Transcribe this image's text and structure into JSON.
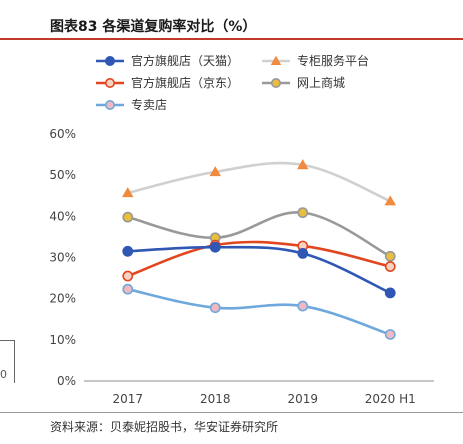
{
  "header": {
    "title": "图表83 各渠道复购率对比（%）"
  },
  "footer": {
    "source": "资料来源：贝泰妮招股书，华安证券研究所"
  },
  "left_fragment": {
    "text": "0"
  },
  "chart_data": {
    "type": "line",
    "title": "",
    "xlabel": "",
    "ylabel": "",
    "categories": [
      "2017",
      "2018",
      "2019",
      "2020 H1"
    ],
    "ylim": [
      0,
      60
    ],
    "yticks": [
      "0%",
      "10%",
      "20%",
      "30%",
      "40%",
      "50%",
      "60%"
    ],
    "grid": false,
    "legend_position": "top",
    "smooth": true,
    "series": [
      {
        "name": "官方旗舰店（天猫）",
        "values": [
          31.5,
          32.5,
          31.0,
          21.4
        ],
        "color": "#2f57b3",
        "marker": "circle",
        "marker_fill": "#2f57b3"
      },
      {
        "name": "专柜服务平台",
        "values": [
          45.7,
          50.8,
          52.5,
          43.7
        ],
        "color": "#d0d0d0",
        "marker": "triangle",
        "marker_fill": "#f08a3e"
      },
      {
        "name": "官方旗舰店（京东）",
        "values": [
          25.5,
          33.0,
          32.8,
          27.8
        ],
        "color": "#e1461e",
        "marker": "circle",
        "marker_fill": "#f6d2c2"
      },
      {
        "name": "网上商城",
        "values": [
          39.8,
          34.8,
          40.9,
          30.3
        ],
        "color": "#999999",
        "marker": "circle",
        "marker_fill": "#e8be3c"
      },
      {
        "name": "专卖店",
        "values": [
          22.3,
          17.8,
          18.2,
          11.3
        ],
        "color": "#6fa8dc",
        "marker": "circle",
        "marker_fill": "#f2b8c0"
      }
    ]
  }
}
